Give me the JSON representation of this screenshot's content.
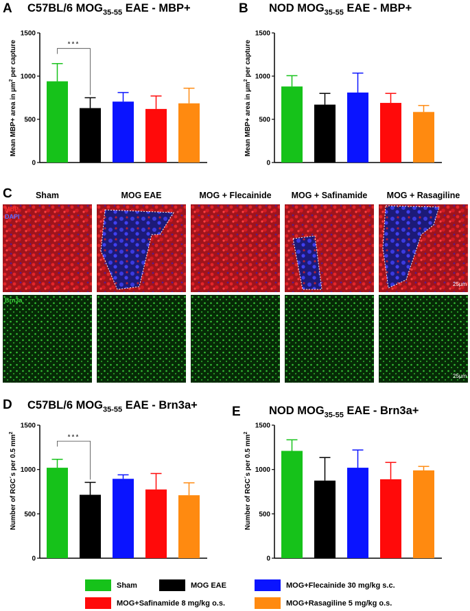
{
  "colors": {
    "sham": "#16c21a",
    "mog": "#000000",
    "flec": "#0a14ff",
    "safin": "#ff0a0a",
    "rasag": "#ff8a10"
  },
  "panelA": {
    "letter": "A",
    "title_pre": "C57BL/6 MOG",
    "title_sub": "35-55",
    "title_post": " EAE - MBP+",
    "ylabel_pre": "Mean MBP+ area in µm",
    "ylabel_sup": "2",
    "ylabel_post": " per capture"
  },
  "panelB": {
    "letter": "B",
    "title_pre": "NOD MOG",
    "title_sub": "35-55",
    "title_post": " EAE - MBP+",
    "ylabel_pre": "Mean MBP+ area in µm",
    "ylabel_sup": "2",
    "ylabel_post": " per capture"
  },
  "panelC": {
    "letter": "C",
    "columns": [
      "Sham",
      "MOG EAE",
      "MOG + Flecainide",
      "MOG + Safinamide",
      "MOG + Rasagiline"
    ],
    "mbp_label": "MBP",
    "dapi_label": "DAPI",
    "brn_label": "Brn3a",
    "scale_label": "25µm"
  },
  "panelD": {
    "letter": "D",
    "title_pre": "C57BL/6 MOG",
    "title_sub": "35-55",
    "title_post": " EAE - Brn3a+",
    "ylabel_pre": "Number of RGC´s per 0.5 mm",
    "ylabel_sup": "2",
    "ylabel_post": ""
  },
  "panelE": {
    "letter": "E",
    "title_pre": "NOD MOG",
    "title_sub": "35-55",
    "title_post": " EAE - Brn3a+",
    "ylabel_pre": "Number of RGC´s per 0.5 mm",
    "ylabel_sup": "2",
    "ylabel_post": ""
  },
  "legend": [
    {
      "label": "Sham",
      "color": "#16c21a"
    },
    {
      "label": "MOG EAE",
      "color": "#000000"
    },
    {
      "label": "MOG+Flecainide 30 mg/kg s.c.",
      "color": "#0a14ff"
    },
    {
      "label": "MOG+Safinamide 8 mg/kg o.s.",
      "color": "#ff0a0a"
    },
    {
      "label": "MOG+Rasagiline 5 mg/kg o.s.",
      "color": "#ff8a10"
    }
  ],
  "chart_data": [
    {
      "id": "A",
      "type": "bar",
      "categories": [
        "Sham",
        "MOG EAE",
        "MOG+Flecainide 30 mg/kg s.c.",
        "MOG+Safinamide 8 mg/kg o.s.",
        "MOG+Rasagiline 5 mg/kg o.s."
      ],
      "values": [
        940,
        630,
        705,
        620,
        685
      ],
      "errors": [
        205,
        120,
        105,
        150,
        175
      ],
      "ylim": [
        0,
        1500
      ],
      "yticks": [
        "0",
        "500",
        "1000",
        "1500"
      ],
      "significance": {
        "from": 0,
        "to": 1,
        "label": "***"
      }
    },
    {
      "id": "B",
      "type": "bar",
      "categories": [
        "Sham",
        "MOG EAE",
        "MOG+Flecainide 30 mg/kg s.c.",
        "MOG+Safinamide 8 mg/kg o.s.",
        "MOG+Rasagiline 5 mg/kg o.s."
      ],
      "values": [
        880,
        670,
        810,
        690,
        585
      ],
      "errors": [
        125,
        130,
        225,
        110,
        75
      ],
      "ylim": [
        0,
        1500
      ],
      "yticks": [
        "0",
        "500",
        "1000",
        "1500"
      ]
    },
    {
      "id": "D",
      "type": "bar",
      "categories": [
        "Sham",
        "MOG EAE",
        "MOG+Flecainide 30 mg/kg s.c.",
        "MOG+Safinamide 8 mg/kg o.s.",
        "MOG+Rasagiline 5 mg/kg o.s."
      ],
      "values": [
        1020,
        715,
        895,
        775,
        710
      ],
      "errors": [
        95,
        140,
        45,
        180,
        140
      ],
      "ylim": [
        0,
        1500
      ],
      "yticks": [
        "0",
        "500",
        "1000",
        "1500"
      ],
      "significance": {
        "from": 0,
        "to": 1,
        "label": "***"
      }
    },
    {
      "id": "E",
      "type": "bar",
      "categories": [
        "Sham",
        "MOG EAE",
        "MOG+Flecainide 30 mg/kg s.c.",
        "MOG+Safinamide 8 mg/kg o.s.",
        "MOG+Rasagiline 5 mg/kg o.s."
      ],
      "values": [
        1210,
        875,
        1020,
        890,
        990
      ],
      "errors": [
        125,
        260,
        200,
        190,
        45
      ],
      "ylim": [
        0,
        1500
      ],
      "yticks": [
        "0",
        "500",
        "1000",
        "1500"
      ]
    }
  ]
}
